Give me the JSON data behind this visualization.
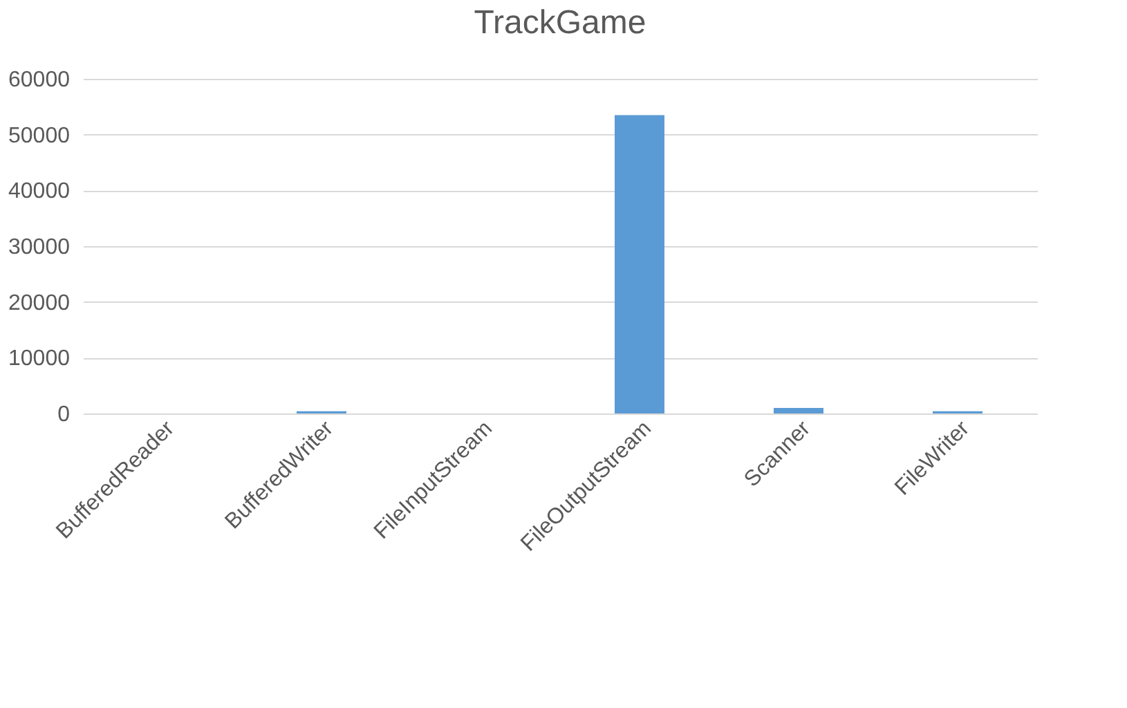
{
  "chart_data": {
    "type": "bar",
    "title": "TrackGame",
    "categories": [
      "BufferedReader",
      "BufferedWriter",
      "FileInputStream",
      "FileOutputStream",
      "Scanner",
      "FileWriter"
    ],
    "values": [
      0,
      400,
      0,
      53500,
      1000,
      400
    ],
    "color": "#5b9bd5",
    "ylim": [
      0,
      60000
    ],
    "yticks": [
      0,
      10000,
      20000,
      30000,
      40000,
      50000,
      60000
    ],
    "grid": "y"
  }
}
